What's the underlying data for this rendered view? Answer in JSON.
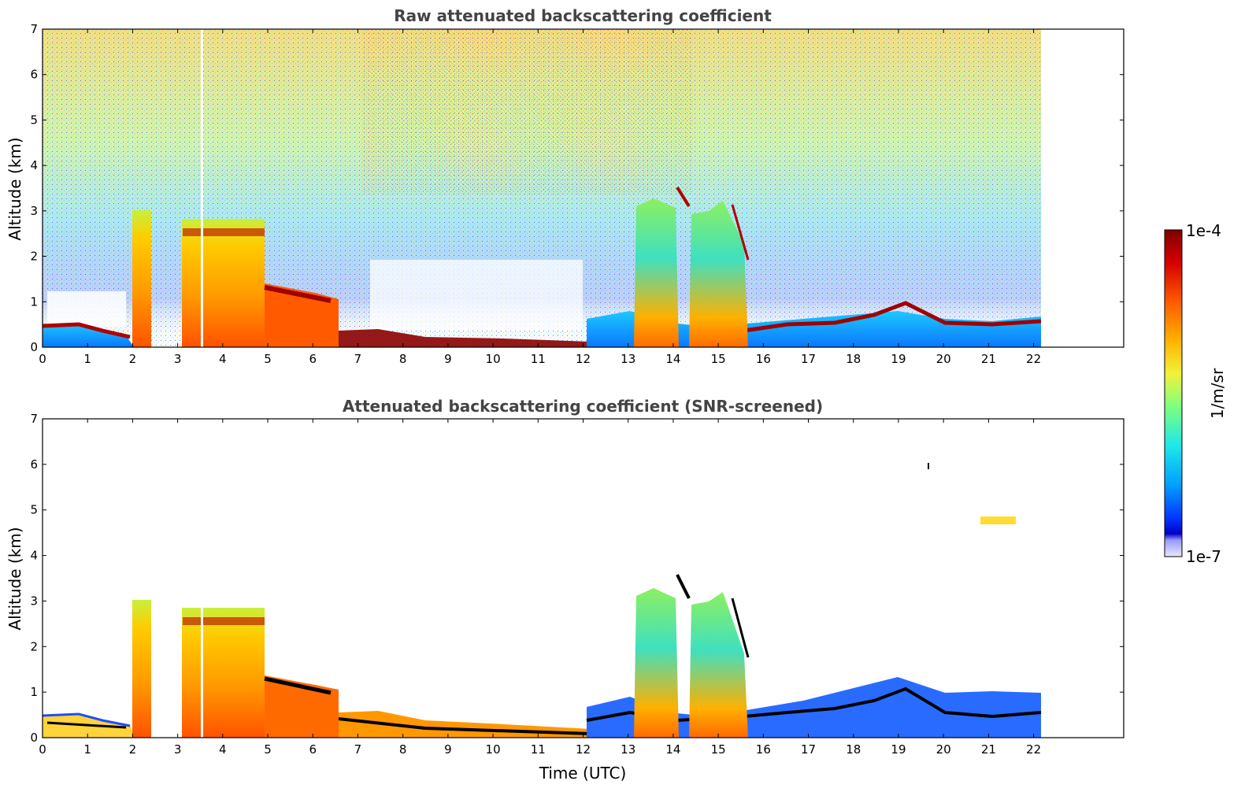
{
  "chart_data": [
    {
      "type": "heatmap",
      "title": "Raw attenuated backscattering coefficient",
      "xlabel": "",
      "ylabel": "Altitude (km)",
      "xlim": [
        0,
        24
      ],
      "ylim": [
        0,
        7
      ],
      "x_data_end": 22.2,
      "xticks": [
        0,
        1,
        2,
        3,
        4,
        5,
        6,
        7,
        8,
        9,
        10,
        11,
        12,
        13,
        14,
        15,
        16,
        17,
        18,
        19,
        20,
        21,
        22
      ],
      "yticks": [
        0,
        1,
        2,
        3,
        4,
        5,
        6,
        7
      ],
      "features": [
        {
          "name": "boundary layer morning",
          "x": [
            0,
            2.0
          ],
          "altitude": 0.4
        },
        {
          "name": "cloud tops",
          "x": [
            2.0,
            4.9
          ],
          "altitude": 2.7
        },
        {
          "name": "boundary layer afternoon",
          "x": [
            12.1,
            22.2
          ],
          "altitude": 0.5
        },
        {
          "name": "cloud tops",
          "x": [
            12.7,
            15.7
          ],
          "altitude": 3.0
        }
      ]
    },
    {
      "type": "heatmap",
      "title": "Attenuated backscattering coefficient (SNR-screened)",
      "xlabel": "Time (UTC)",
      "ylabel": "Altitude (km)",
      "xlim": [
        0,
        24
      ],
      "ylim": [
        0,
        7
      ],
      "x_data_end": 22.2,
      "xticks": [
        0,
        1,
        2,
        3,
        4,
        5,
        6,
        7,
        8,
        9,
        10,
        11,
        12,
        13,
        14,
        15,
        16,
        17,
        18,
        19,
        20,
        21,
        22
      ],
      "yticks": [
        0,
        1,
        2,
        3,
        4,
        5,
        6,
        7
      ]
    }
  ],
  "colorbar": {
    "label": "1/m/sr",
    "max_label": "1e-4",
    "min_label": "1e-7",
    "colors": [
      "#7f0000",
      "#d50000",
      "#ff5a00",
      "#ffb300",
      "#f2f23a",
      "#7fff7f",
      "#1ee8e8",
      "#00a0ff",
      "#0038ff",
      "#0000c8",
      "#e8e8ff"
    ]
  }
}
